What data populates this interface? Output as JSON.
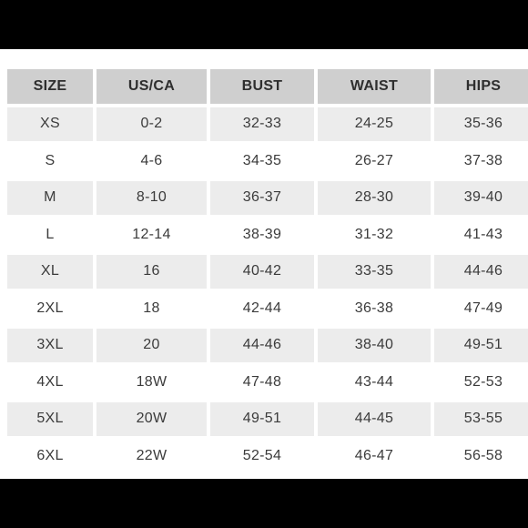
{
  "table": {
    "columns": [
      "SIZE",
      "US/CA",
      "BUST",
      "WAIST",
      "HIPS"
    ],
    "rows": [
      [
        "XS",
        "0-2",
        "32-33",
        "24-25",
        "35-36"
      ],
      [
        "S",
        "4-6",
        "34-35",
        "26-27",
        "37-38"
      ],
      [
        "M",
        "8-10",
        "36-37",
        "28-30",
        "39-40"
      ],
      [
        "L",
        "12-14",
        "38-39",
        "31-32",
        "41-43"
      ],
      [
        "XL",
        "16",
        "40-42",
        "33-35",
        "44-46"
      ],
      [
        "2XL",
        "18",
        "42-44",
        "36-38",
        "47-49"
      ],
      [
        "3XL",
        "20",
        "44-46",
        "38-40",
        "49-51"
      ],
      [
        "4XL",
        "18W",
        "47-48",
        "43-44",
        "52-53"
      ],
      [
        "5XL",
        "20W",
        "49-51",
        "44-45",
        "53-55"
      ],
      [
        "6XL",
        "22W",
        "52-54",
        "46-47",
        "56-58"
      ]
    ]
  },
  "colors": {
    "header_bg": "#cfcfcf",
    "shaded_row_bg": "#ececec",
    "plain_row_bg": "#ffffff",
    "frame_bg": "#000000"
  }
}
